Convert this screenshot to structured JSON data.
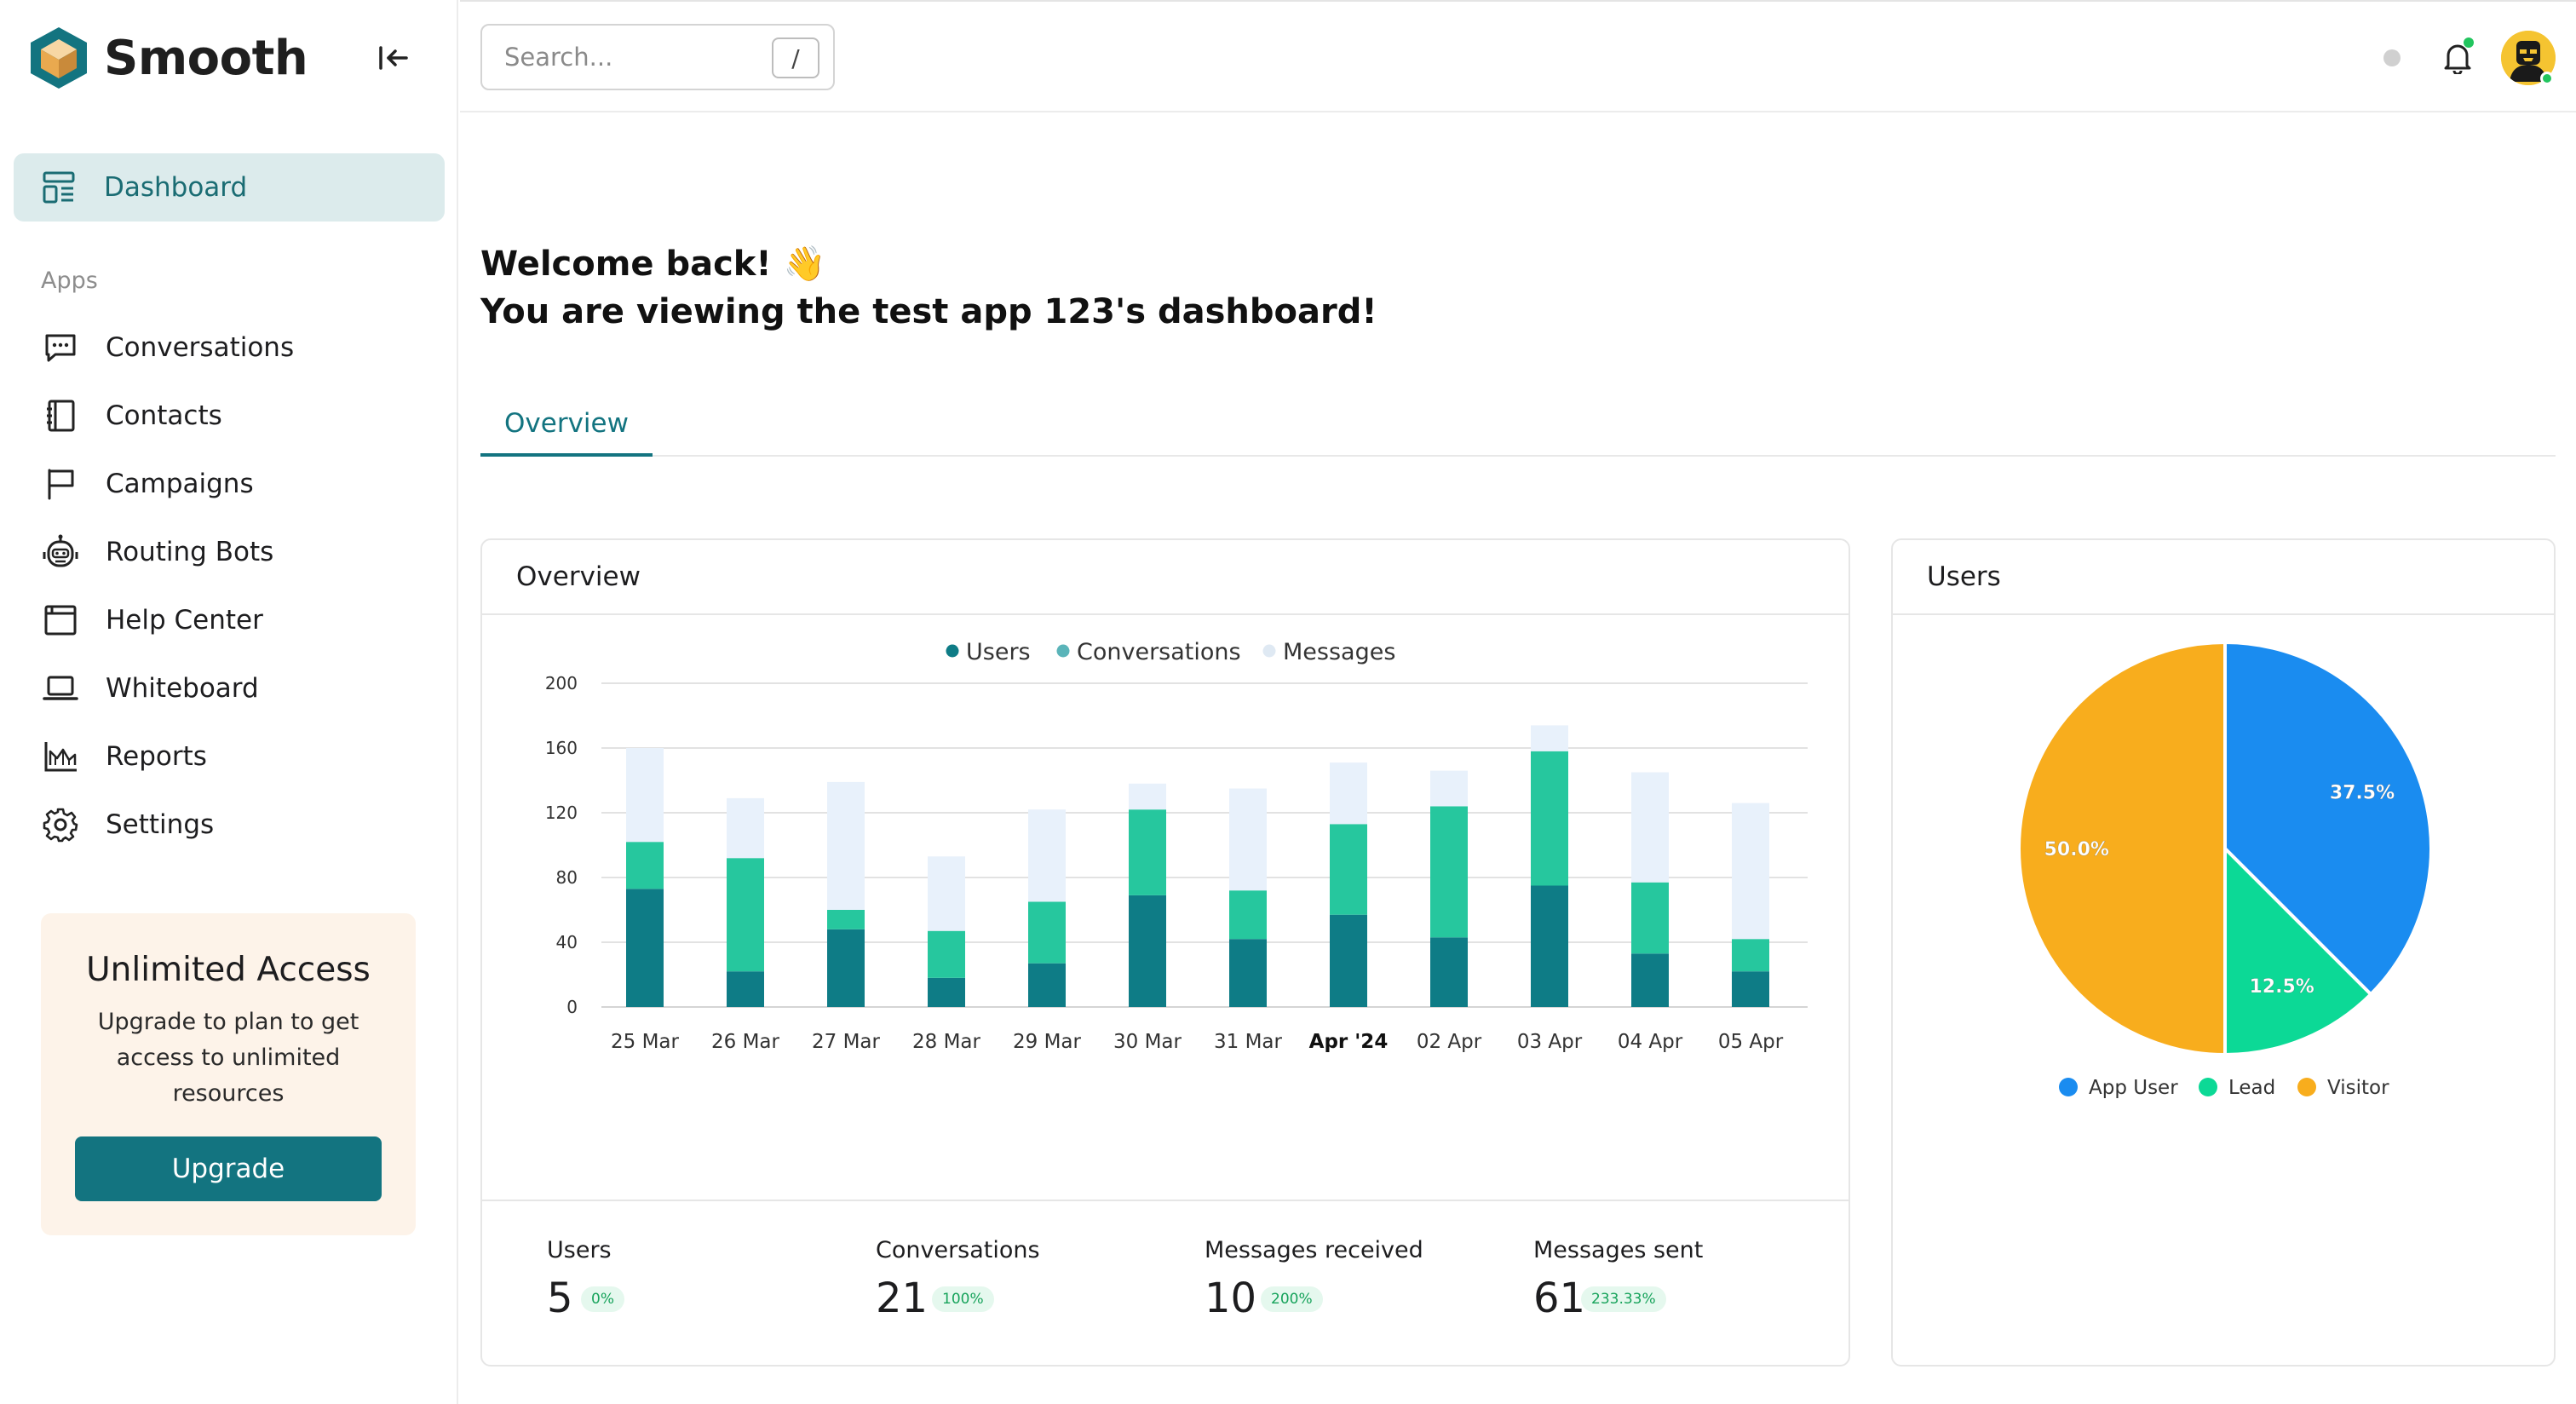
{
  "app": {
    "name": "Smooth"
  },
  "sidebar": {
    "active_item": {
      "label": "Dashboard",
      "icon": "dashboard-icon"
    },
    "section_label": "Apps",
    "items": [
      {
        "label": "Conversations",
        "icon": "chat-icon"
      },
      {
        "label": "Contacts",
        "icon": "contacts-book-icon"
      },
      {
        "label": "Campaigns",
        "icon": "flag-icon"
      },
      {
        "label": "Routing Bots",
        "icon": "robot-icon"
      },
      {
        "label": "Help Center",
        "icon": "browser-window-icon"
      },
      {
        "label": "Whiteboard",
        "icon": "laptop-icon"
      },
      {
        "label": "Reports",
        "icon": "area-chart-icon"
      },
      {
        "label": "Settings",
        "icon": "gear-icon"
      }
    ],
    "upgrade": {
      "title": "Unlimited Access",
      "description": "Upgrade to plan to get access to unlimited resources",
      "button": "Upgrade"
    }
  },
  "header": {
    "search_placeholder": "Search...",
    "search_shortcut": "/"
  },
  "main": {
    "welcome_line1": "Welcome back! 👋",
    "welcome_line2": "You are viewing the test app 123's dashboard!",
    "tabs": [
      {
        "label": "Overview",
        "active": true
      }
    ],
    "overview_card": {
      "title": "Overview",
      "stats": [
        {
          "label": "Users",
          "value": "5",
          "badge": "0%"
        },
        {
          "label": "Conversations",
          "value": "21",
          "badge": "100%"
        },
        {
          "label": "Messages received",
          "value": "10",
          "badge": "200%"
        },
        {
          "label": "Messages sent",
          "value": "61",
          "badge": "233.33%"
        }
      ]
    },
    "users_card": {
      "title": "Users"
    }
  },
  "colors": {
    "accent": "#137480",
    "users": "#0e7c86",
    "conversations": "#26c79e",
    "messages": "#e8f1fb",
    "app_user": "#1a8cf0",
    "lead": "#0cd996",
    "visitor": "#f8ad1d"
  },
  "chart_data": [
    {
      "type": "bar",
      "stacked": true,
      "categories": [
        "25 Mar",
        "26 Mar",
        "27 Mar",
        "28 Mar",
        "29 Mar",
        "30 Mar",
        "31 Mar",
        "Apr '24",
        "02 Apr",
        "03 Apr",
        "04 Apr",
        "05 Apr"
      ],
      "bold_categories": [
        "Apr '24"
      ],
      "series": [
        {
          "name": "Users",
          "values": [
            73,
            22,
            48,
            18,
            27,
            69,
            42,
            57,
            43,
            75,
            33,
            22
          ]
        },
        {
          "name": "Conversations",
          "values": [
            29,
            70,
            12,
            29,
            38,
            53,
            30,
            56,
            81,
            83,
            44,
            20
          ]
        },
        {
          "name": "Messages",
          "values": [
            58,
            37,
            79,
            46,
            57,
            16,
            63,
            38,
            22,
            16,
            68,
            84
          ]
        }
      ],
      "ylim": [
        0,
        200
      ],
      "yticks": [
        0,
        40,
        80,
        120,
        160,
        200
      ],
      "grid": true,
      "legend": "top-center"
    },
    {
      "type": "pie",
      "labels": [
        "App User",
        "Lead",
        "Visitor"
      ],
      "values": [
        37.5,
        12.5,
        50.0
      ],
      "value_labels": [
        "37.5%",
        "12.5%",
        "50.0%"
      ],
      "legend": "bottom-center"
    }
  ]
}
